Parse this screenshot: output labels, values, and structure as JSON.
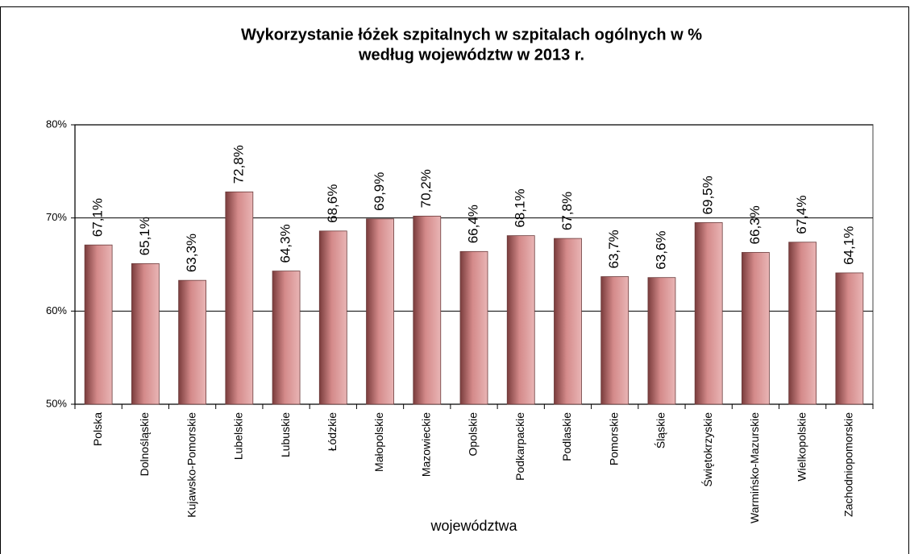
{
  "chart_data": {
    "type": "bar",
    "title": "Wykorzystanie łóżek szpitalnych  w szpitalach ogólnych  w %",
    "subtitle": "według województw w 2013 r.",
    "x_label": "województwa",
    "categories": [
      "Polska",
      "Dolnośląskie",
      "Kujawsko-Pomorskie",
      "Lubelskie",
      "Lubuskie",
      "Łódzkie",
      "Małopolskie",
      "Mazowieckie",
      "Opolskie",
      "Podkarpackie",
      "Podlaskie",
      "Pomorskie",
      "Śląskie",
      "Świętokrzyskie",
      "Warmińsko-Mazurskie",
      "Wielkopolskie",
      "Zachodniopomorskie"
    ],
    "values": [
      67.1,
      65.1,
      63.3,
      72.8,
      64.3,
      68.6,
      69.9,
      70.2,
      66.4,
      68.1,
      67.8,
      63.7,
      63.6,
      69.5,
      66.3,
      67.4,
      64.1
    ],
    "value_labels": [
      "67,1%",
      "65,1%",
      "63,3%",
      "72,8%",
      "64,3%",
      "68,6%",
      "69,9%",
      "70,2%",
      "66,4%",
      "68,1%",
      "67,8%",
      "63,7%",
      "63,6%",
      "69,5%",
      "66,3%",
      "67,4%",
      "64,1%"
    ],
    "color": "#d48a8a",
    "ylim": [
      50,
      80
    ],
    "yticks": [
      {
        "value": 50,
        "label": "50%"
      },
      {
        "value": 60,
        "label": "60%"
      },
      {
        "value": 70,
        "label": "70%"
      },
      {
        "value": 80,
        "label": "80%"
      }
    ],
    "grid": true
  }
}
